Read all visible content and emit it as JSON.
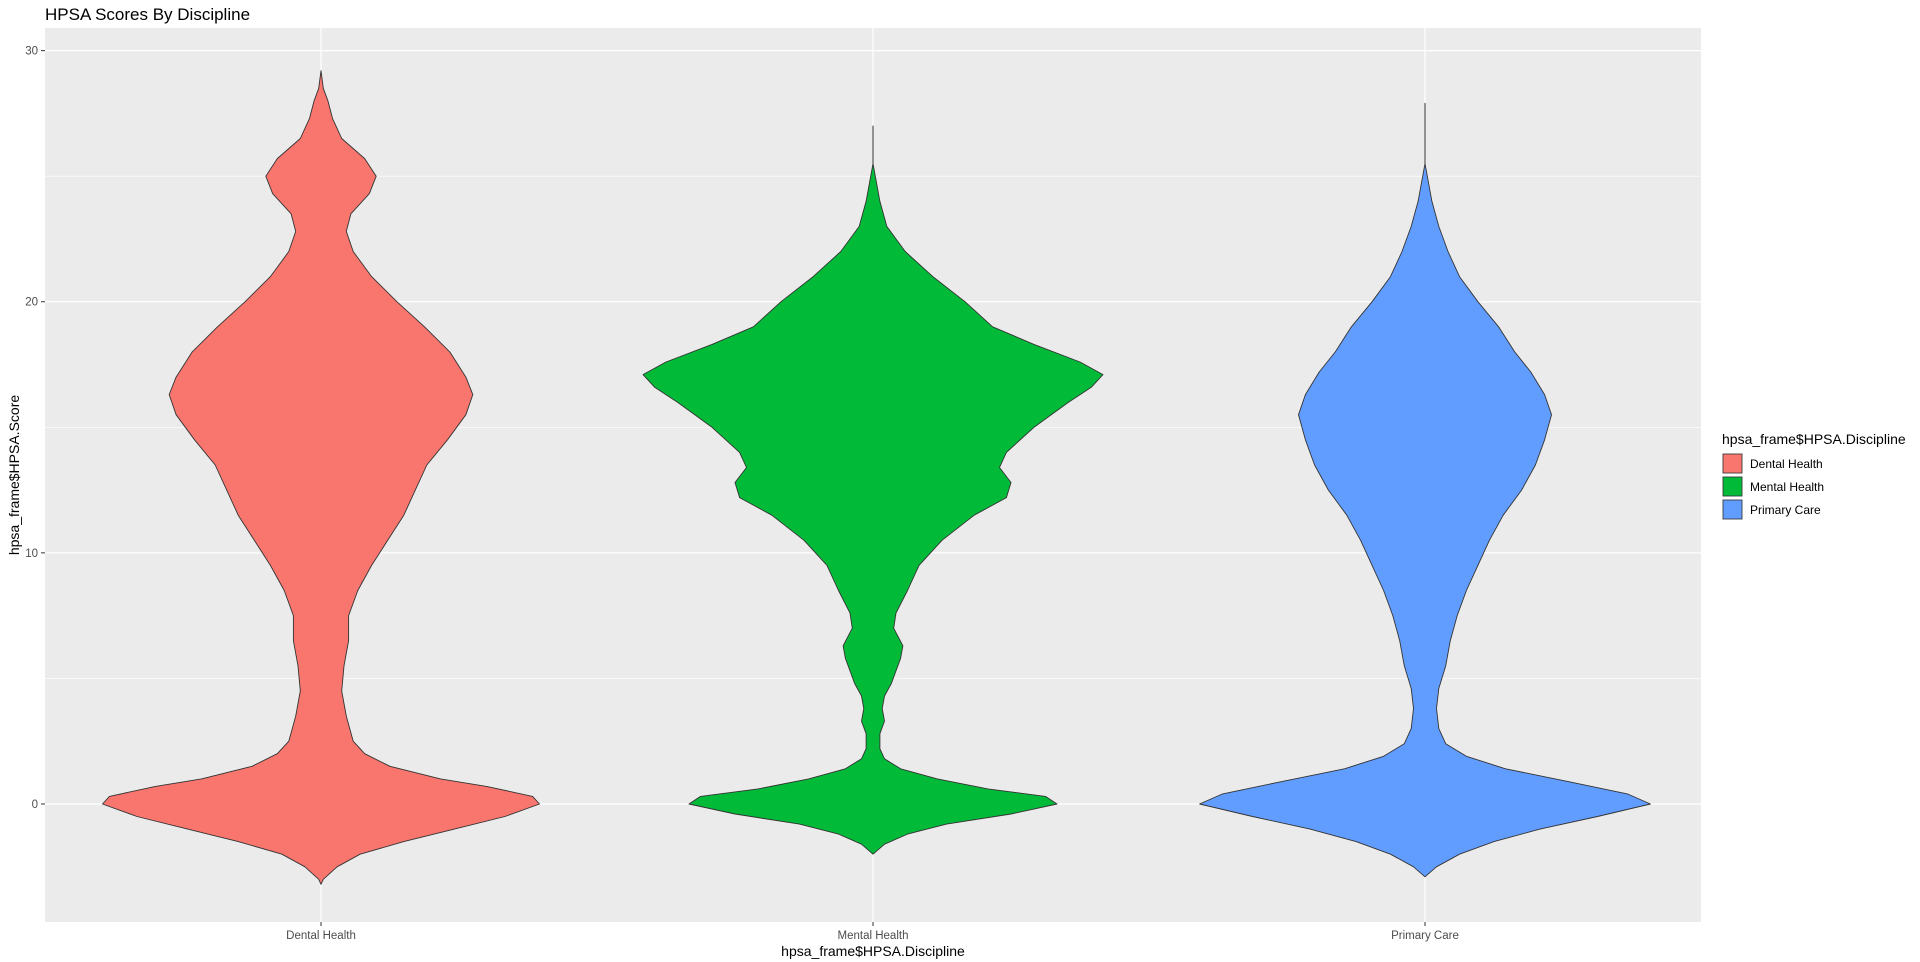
{
  "chart_data": {
    "type": "violin",
    "title": "HPSA Scores By Discipline",
    "xlabel": "hpsa_frame$HPSA.Discipline",
    "ylabel": "hpsa_frame$HPSA.Score",
    "categories": [
      "Dental Health",
      "Mental Health",
      "Primary Care"
    ],
    "ylim": [
      -4.7,
      30.9
    ],
    "yticks": [
      0,
      10,
      20,
      30
    ],
    "grid": true,
    "legend": {
      "title": "hpsa_frame$HPSA.Discipline",
      "placement": "right",
      "entries": [
        "Dental Health",
        "Mental Health",
        "Primary Care"
      ]
    },
    "colors": {
      "Dental Health": "#F8766D",
      "Mental Health": "#00BA38",
      "Primary Care": "#619CFF",
      "panel_background": "#EBEBEB",
      "grid": "#FFFFFF",
      "outline": "#333333"
    },
    "series": [
      {
        "name": "Dental Health",
        "min": -3.2,
        "max": 29.2,
        "density_profile": [
          [
            -3.2,
            0.0
          ],
          [
            -3.0,
            0.01
          ],
          [
            -2.5,
            0.07
          ],
          [
            -2.0,
            0.17
          ],
          [
            -1.5,
            0.36
          ],
          [
            -1.0,
            0.58
          ],
          [
            -0.5,
            0.8
          ],
          [
            0.0,
            0.95
          ],
          [
            0.3,
            0.92
          ],
          [
            0.7,
            0.72
          ],
          [
            1.0,
            0.52
          ],
          [
            1.5,
            0.3
          ],
          [
            2.0,
            0.19
          ],
          [
            2.5,
            0.14
          ],
          [
            3.5,
            0.11
          ],
          [
            4.5,
            0.09
          ],
          [
            5.5,
            0.1
          ],
          [
            6.5,
            0.12
          ],
          [
            7.5,
            0.12
          ],
          [
            8.5,
            0.16
          ],
          [
            9.5,
            0.22
          ],
          [
            10.5,
            0.29
          ],
          [
            11.5,
            0.36
          ],
          [
            12.5,
            0.41
          ],
          [
            13.5,
            0.46
          ],
          [
            14.5,
            0.55
          ],
          [
            15.5,
            0.63
          ],
          [
            16.3,
            0.66
          ],
          [
            17.0,
            0.63
          ],
          [
            18.0,
            0.56
          ],
          [
            19.0,
            0.45
          ],
          [
            20.0,
            0.33
          ],
          [
            21.0,
            0.22
          ],
          [
            22.0,
            0.14
          ],
          [
            22.8,
            0.11
          ],
          [
            23.5,
            0.13
          ],
          [
            24.3,
            0.21
          ],
          [
            25.0,
            0.24
          ],
          [
            25.7,
            0.19
          ],
          [
            26.5,
            0.09
          ],
          [
            27.3,
            0.05
          ],
          [
            28.0,
            0.03
          ],
          [
            28.5,
            0.01
          ],
          [
            29.2,
            0.0
          ]
        ]
      },
      {
        "name": "Mental Health",
        "min": -2.0,
        "max": 27.0,
        "density_profile": [
          [
            -2.0,
            0.0
          ],
          [
            -1.6,
            0.05
          ],
          [
            -1.2,
            0.15
          ],
          [
            -0.8,
            0.32
          ],
          [
            -0.4,
            0.6
          ],
          [
            0.0,
            0.8
          ],
          [
            0.3,
            0.75
          ],
          [
            0.6,
            0.5
          ],
          [
            1.0,
            0.28
          ],
          [
            1.4,
            0.12
          ],
          [
            1.8,
            0.05
          ],
          [
            2.2,
            0.03
          ],
          [
            2.8,
            0.03
          ],
          [
            3.3,
            0.05
          ],
          [
            3.8,
            0.04
          ],
          [
            4.3,
            0.05
          ],
          [
            4.8,
            0.08
          ],
          [
            5.3,
            0.1
          ],
          [
            5.8,
            0.12
          ],
          [
            6.3,
            0.13
          ],
          [
            7.0,
            0.09
          ],
          [
            7.6,
            0.1
          ],
          [
            8.5,
            0.15
          ],
          [
            9.5,
            0.2
          ],
          [
            10.5,
            0.3
          ],
          [
            11.5,
            0.44
          ],
          [
            12.2,
            0.58
          ],
          [
            12.8,
            0.6
          ],
          [
            13.4,
            0.55
          ],
          [
            14.0,
            0.58
          ],
          [
            15.0,
            0.7
          ],
          [
            16.0,
            0.85
          ],
          [
            16.6,
            0.95
          ],
          [
            17.1,
            1.0
          ],
          [
            17.6,
            0.9
          ],
          [
            18.3,
            0.7
          ],
          [
            19.0,
            0.52
          ],
          [
            20.0,
            0.4
          ],
          [
            21.0,
            0.26
          ],
          [
            22.0,
            0.14
          ],
          [
            23.0,
            0.06
          ],
          [
            24.0,
            0.03
          ],
          [
            25.0,
            0.01
          ],
          [
            25.5,
            0.0
          ],
          [
            27.0,
            0.0
          ]
        ]
      },
      {
        "name": "Primary Care",
        "min": -2.9,
        "max": 27.9,
        "density_profile": [
          [
            -2.9,
            0.0
          ],
          [
            -2.5,
            0.05
          ],
          [
            -2.0,
            0.15
          ],
          [
            -1.5,
            0.3
          ],
          [
            -1.0,
            0.5
          ],
          [
            -0.5,
            0.75
          ],
          [
            0.0,
            0.98
          ],
          [
            0.4,
            0.88
          ],
          [
            0.9,
            0.62
          ],
          [
            1.4,
            0.35
          ],
          [
            1.9,
            0.18
          ],
          [
            2.4,
            0.09
          ],
          [
            3.0,
            0.06
          ],
          [
            3.8,
            0.05
          ],
          [
            4.6,
            0.06
          ],
          [
            5.5,
            0.09
          ],
          [
            6.5,
            0.11
          ],
          [
            7.5,
            0.14
          ],
          [
            8.5,
            0.18
          ],
          [
            9.5,
            0.23
          ],
          [
            10.5,
            0.28
          ],
          [
            11.5,
            0.34
          ],
          [
            12.5,
            0.42
          ],
          [
            13.5,
            0.48
          ],
          [
            14.5,
            0.52
          ],
          [
            15.5,
            0.55
          ],
          [
            16.3,
            0.52
          ],
          [
            17.2,
            0.46
          ],
          [
            18.0,
            0.39
          ],
          [
            19.0,
            0.32
          ],
          [
            20.0,
            0.23
          ],
          [
            21.0,
            0.15
          ],
          [
            22.0,
            0.1
          ],
          [
            23.0,
            0.06
          ],
          [
            24.0,
            0.03
          ],
          [
            25.0,
            0.01
          ],
          [
            25.5,
            0.0
          ],
          [
            27.9,
            0.0
          ]
        ]
      }
    ]
  }
}
